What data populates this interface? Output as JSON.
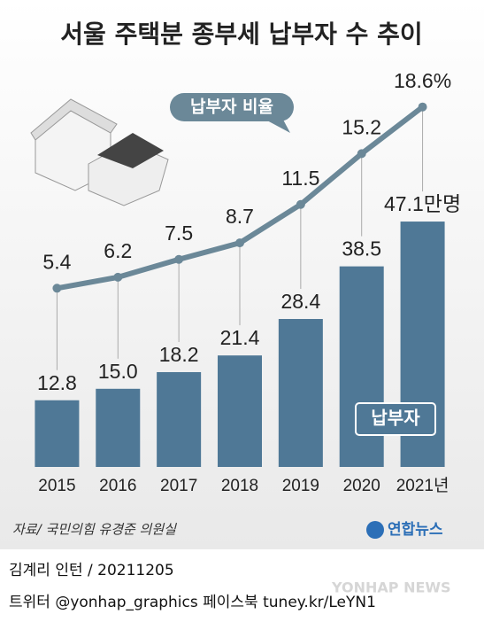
{
  "chart_data": {
    "type": "bar",
    "title": "서울 주택분 종부세 납부자 수 추이",
    "categories": [
      "2015",
      "2016",
      "2017",
      "2018",
      "2019",
      "2020",
      "2021년"
    ],
    "series": [
      {
        "name": "납부자",
        "type": "bar",
        "color": "#4f7896",
        "values": [
          12.8,
          15.0,
          18.2,
          21.4,
          28.4,
          38.5,
          47.1
        ],
        "value_labels": [
          "12.8",
          "15.0",
          "18.2",
          "21.4",
          "28.4",
          "38.5",
          "47.1만명"
        ]
      },
      {
        "name": "납부자 비율",
        "type": "line",
        "color": "#6b8898",
        "values": [
          5.4,
          6.2,
          7.5,
          8.7,
          11.5,
          15.2,
          18.6
        ],
        "value_labels": [
          "5.4",
          "6.2",
          "7.5",
          "8.7",
          "11.5",
          "15.2",
          "18.6%"
        ]
      }
    ],
    "source": "자료/ 국민의힘 유경준 의원실",
    "logo": "연합뉴스",
    "credit": "김계리 인턴 / 20211205",
    "social": "트위터 @yonhap_graphics  페이스북 tuney.kr/LeYN1",
    "watermark": "YONHAP NEWS"
  }
}
